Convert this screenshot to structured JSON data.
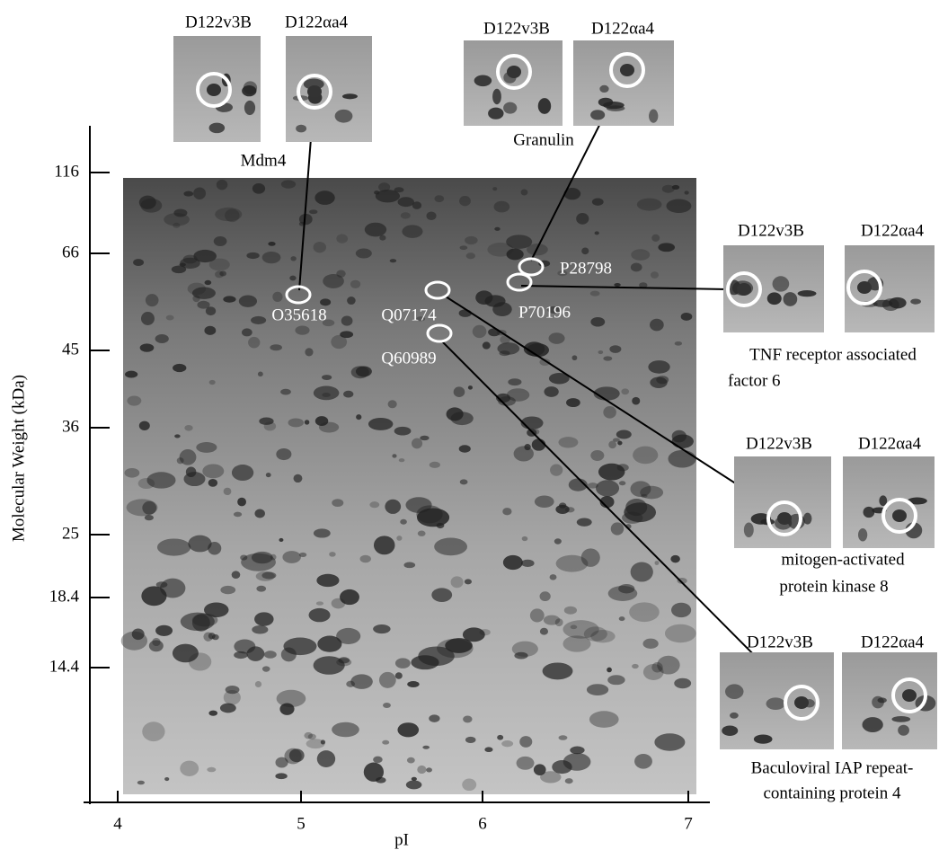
{
  "y_axis": {
    "label": "Molecular Weight (kDa)",
    "ticks": [
      116,
      66,
      45,
      36,
      25,
      18.4,
      14.4
    ]
  },
  "x_axis": {
    "label": "pI",
    "ticks": [
      4,
      5,
      6,
      7
    ]
  },
  "spots": [
    "O35618",
    "Q07174",
    "Q60989",
    "P28798",
    "P70196"
  ],
  "insets": [
    {
      "labels": [
        "D122v3B",
        "D122αa4"
      ],
      "caption": [
        "Mdm4"
      ]
    },
    {
      "labels": [
        "D122v3B",
        "D122αa4"
      ],
      "caption": [
        "Granulin"
      ]
    },
    {
      "labels": [
        "D122v3B",
        "D122αa4"
      ],
      "caption": [
        "TNF receptor associated",
        "factor 6"
      ]
    },
    {
      "labels": [
        "D122v3B",
        "D122αa4"
      ],
      "caption": [
        "mitogen-activated",
        "protein kinase 8"
      ]
    },
    {
      "labels": [
        "D122v3B",
        "D122αa4"
      ],
      "caption": [
        "Baculoviral IAP repeat-",
        "containing protein 4"
      ]
    }
  ]
}
